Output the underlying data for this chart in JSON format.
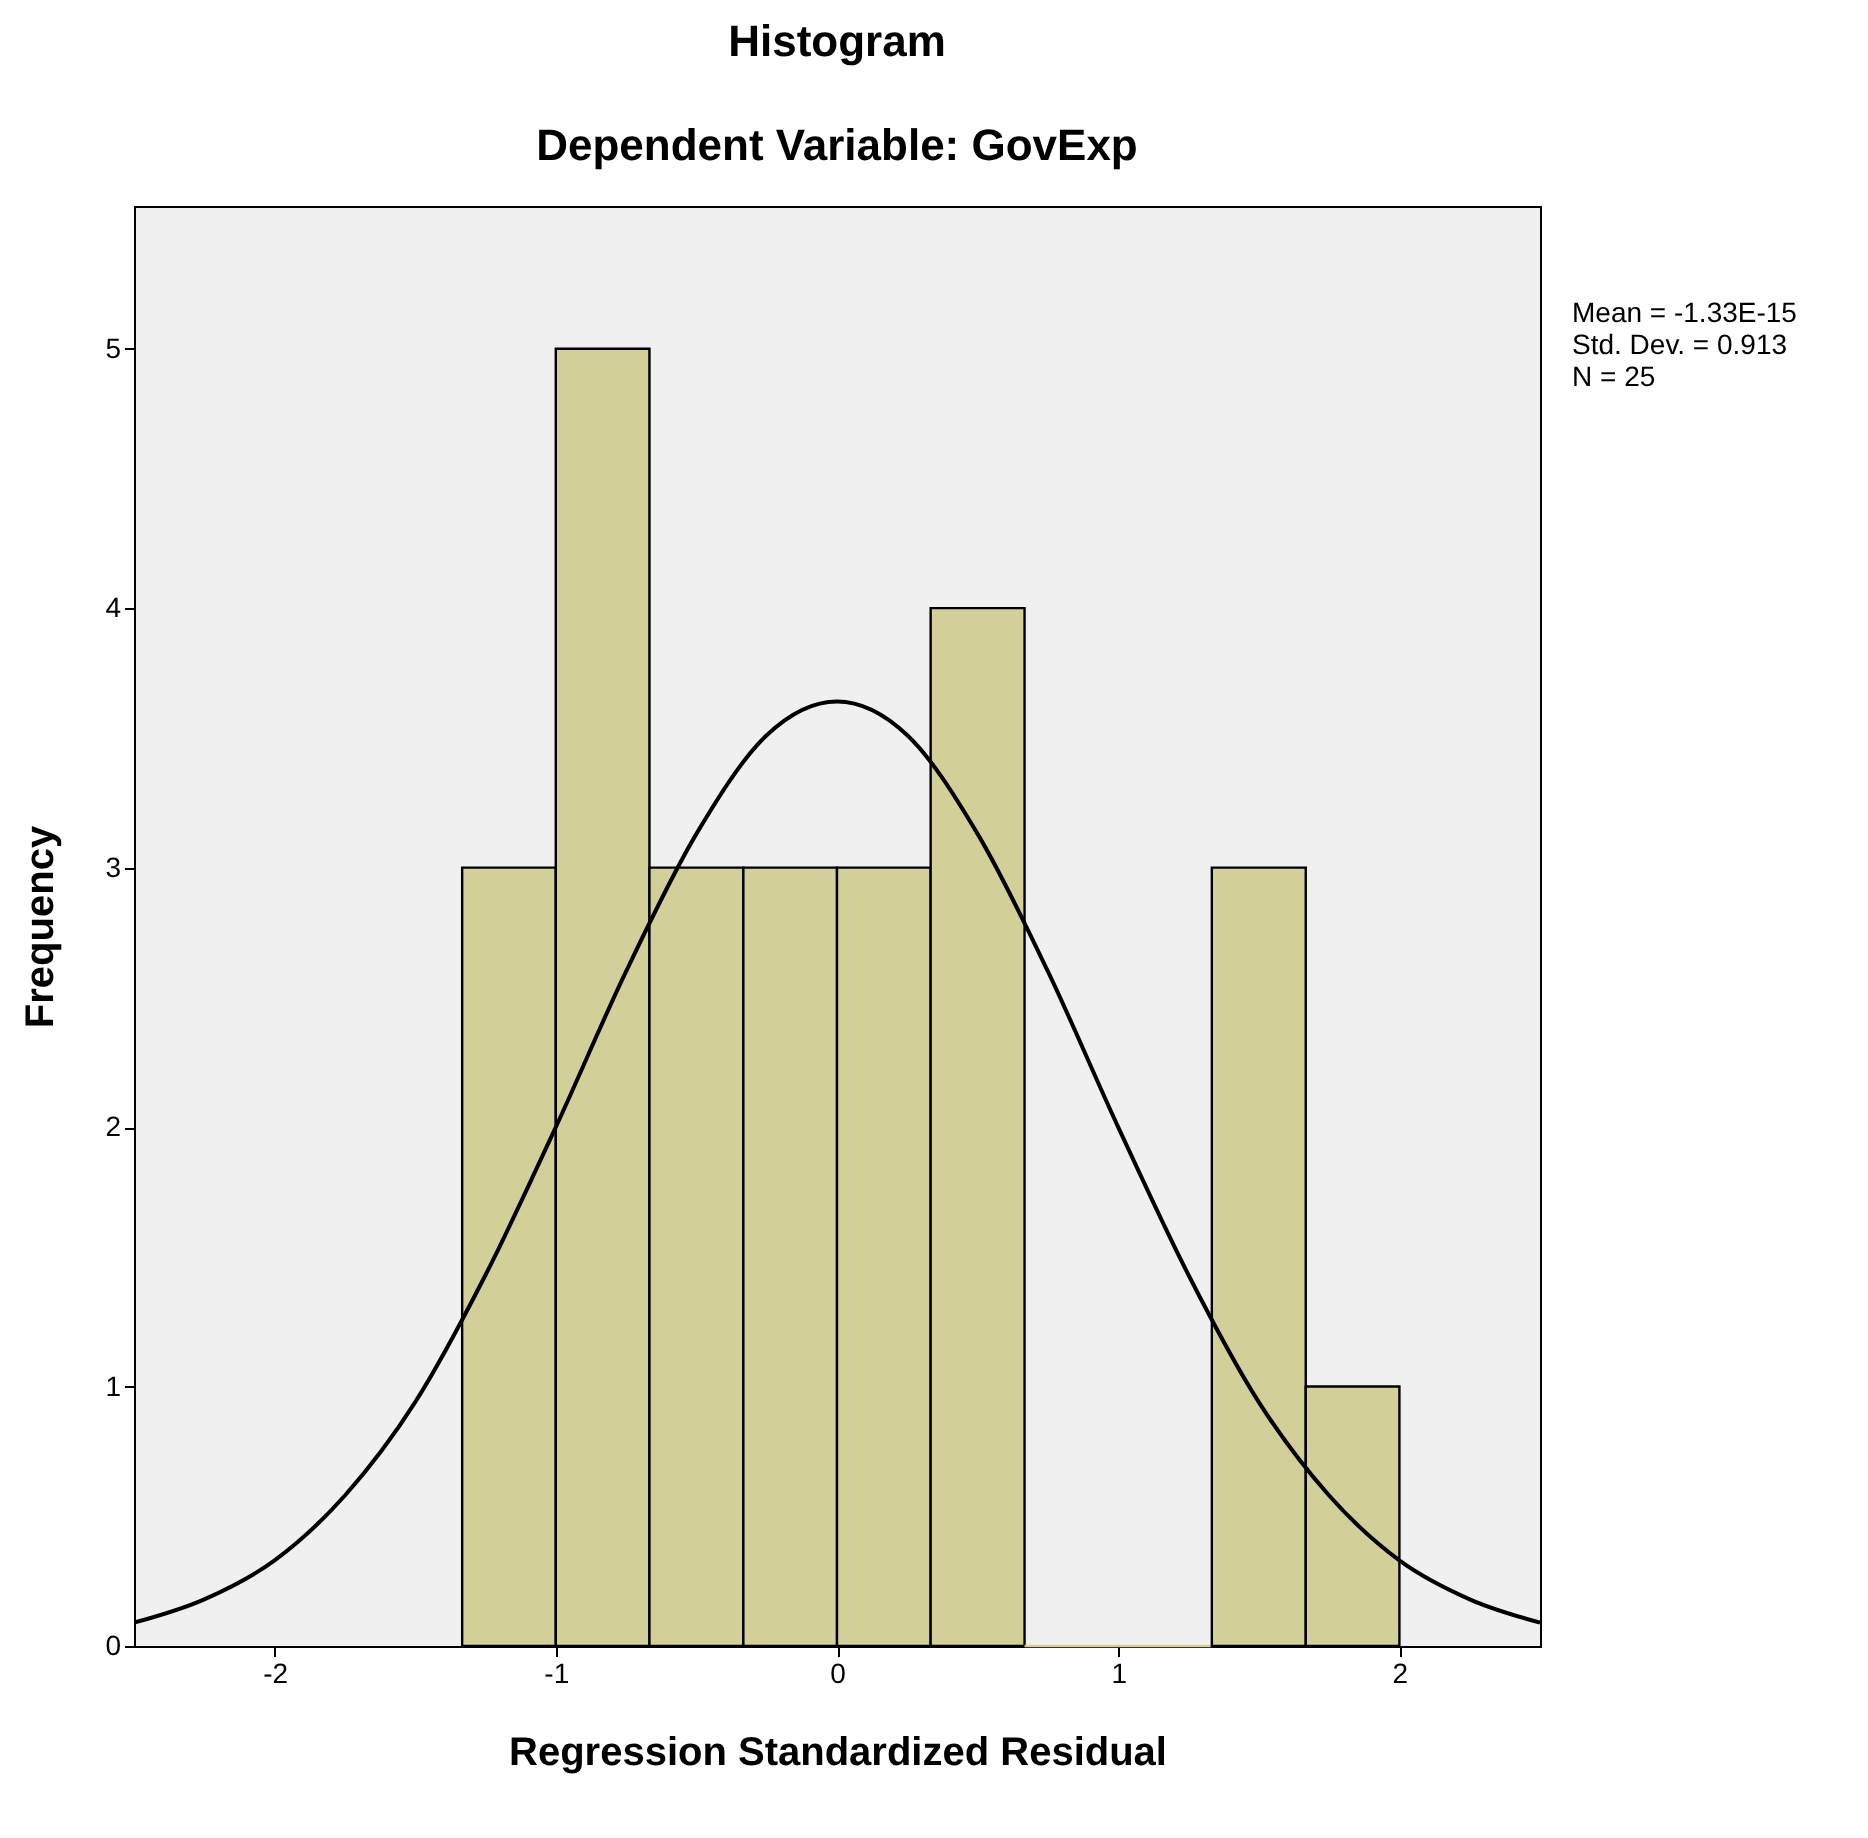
{
  "chart_data": {
    "type": "histogram",
    "title": "Histogram",
    "subtitle": "Dependent Variable: GovExp",
    "xlabel": "Regression Standardized Residual",
    "ylabel": "Frequency",
    "bins": [
      -1.333,
      -1,
      -0.667,
      -0.333,
      0,
      0.333,
      0.667,
      1,
      1.333,
      1.667,
      2
    ],
    "series": [
      {
        "color": "#d3cf98",
        "values": [
          3,
          5,
          3,
          3,
          3,
          4,
          0,
          0,
          3,
          1
        ]
      },
      {
        "type": "line",
        "color": "#000000",
        "x": [
          -2.5,
          -2.25,
          -2,
          -1.75,
          -1.5,
          -1.25,
          -1,
          -0.75,
          -0.5,
          -0.25,
          0,
          0.25,
          0.5,
          0.75,
          1,
          1.25,
          1.5,
          1.75,
          2,
          2.25,
          2.5
        ],
        "values": [
          0.09,
          0.18,
          0.33,
          0.58,
          0.94,
          1.43,
          2.0,
          2.6,
          3.13,
          3.51,
          3.64,
          3.51,
          3.13,
          2.6,
          2.0,
          1.43,
          0.94,
          0.58,
          0.33,
          0.18,
          0.09
        ]
      }
    ],
    "xlim": [
      -2.5,
      2.5
    ],
    "xticks": [
      -2,
      -1,
      0,
      1,
      2
    ],
    "ylim": [
      0,
      5.55
    ],
    "yticks": [
      0,
      1,
      2,
      3,
      4,
      5
    ],
    "annotations": [
      "Mean = -1.33E-15",
      "Std. Dev. = 0.913",
      "N = 25"
    ]
  }
}
